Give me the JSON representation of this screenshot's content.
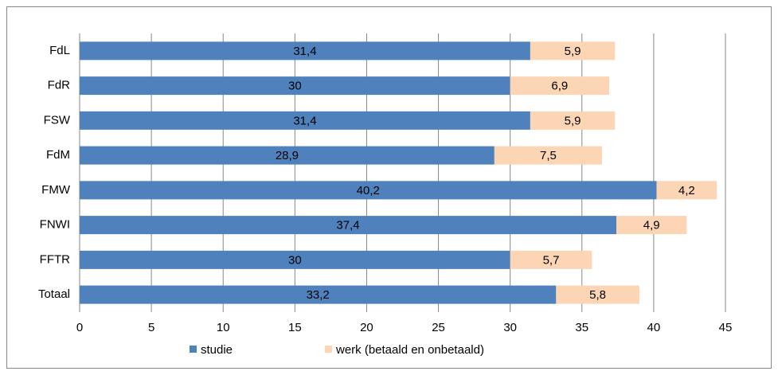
{
  "chart_data": {
    "type": "bar",
    "orientation": "horizontal",
    "stacked": true,
    "categories": [
      "FdL",
      "FdR",
      "FSW",
      "FdM",
      "FMW",
      "FNWI",
      "FFTR",
      "Totaal"
    ],
    "series": [
      {
        "name": "studie",
        "color": "#4f81bd",
        "values": [
          31.4,
          30,
          31.4,
          28.9,
          40.2,
          37.4,
          30,
          33.2
        ],
        "value_labels": [
          "31,4",
          "30",
          "31,4",
          "28,9",
          "40,2",
          "37,4",
          "30",
          "33,2"
        ]
      },
      {
        "name": "werk (betaald en onbetaald)",
        "color": "#fcd5b5",
        "values": [
          5.9,
          6.9,
          5.9,
          7.5,
          4.2,
          4.9,
          5.7,
          5.8
        ],
        "value_labels": [
          "5,9",
          "6,9",
          "5,9",
          "7,5",
          "4,2",
          "4,9",
          "5,7",
          "5,8"
        ]
      }
    ],
    "xlim": [
      0,
      45
    ],
    "xticks": [
      0,
      5,
      10,
      15,
      20,
      25,
      30,
      35,
      40,
      45
    ],
    "grid": true,
    "legend": "bottom"
  }
}
